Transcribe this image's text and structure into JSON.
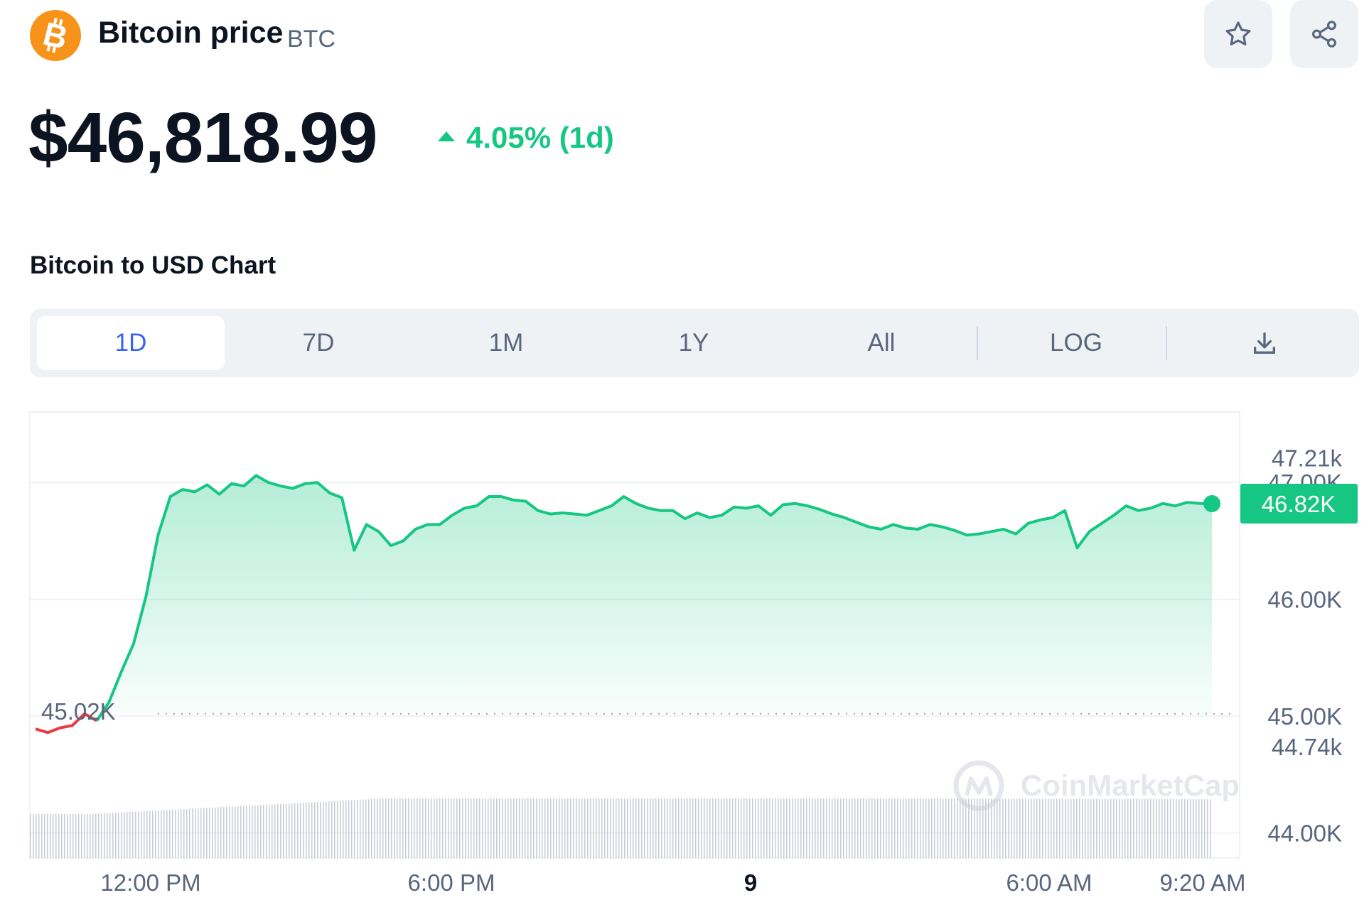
{
  "header": {
    "coin_name": "Bitcoin price",
    "coin_symbol": "BTC",
    "logo_icon": "bitcoin-icon",
    "star_icon": "star-icon",
    "share_icon": "share-icon"
  },
  "price": {
    "value": "$46,818.99",
    "change": "4.05% (1d)",
    "change_direction": "up",
    "change_color": "#16c784"
  },
  "chart_section": {
    "title": "Bitcoin to USD Chart"
  },
  "range_tabs": {
    "items": [
      "1D",
      "7D",
      "1M",
      "1Y",
      "All"
    ],
    "active": "1D",
    "log_label": "LOG",
    "download_icon": "download-icon"
  },
  "colors": {
    "up": "#16c784",
    "down": "#ea3943",
    "brand": "#f7931a"
  },
  "chart_data": {
    "type": "area",
    "watermark": "CoinMarketCap",
    "x_labels": [
      "12:00 PM",
      "6:00 PM",
      "9",
      "6:00 AM",
      "9:20 AM"
    ],
    "y_labels": [
      "47.21k",
      "47.00K",
      "46.00K",
      "45.00K",
      "44.74k",
      "44.00K"
    ],
    "ylim": [
      44000,
      47210
    ],
    "reference_value": 45020,
    "reference_label": "45.02K",
    "current_value": 46818.99,
    "current_label": "46.82K",
    "grid": true,
    "series": [
      {
        "x": [
          0,
          0.25,
          0.5,
          0.75,
          1.0,
          1.25,
          1.5,
          1.75,
          2.0,
          2.25,
          2.5,
          2.75,
          3.0,
          3.25,
          3.5,
          3.75,
          4.0,
          4.25,
          4.5,
          4.75,
          5.0,
          5.25,
          5.5,
          5.75,
          6.0,
          6.25,
          6.5,
          6.75,
          7.0,
          7.25,
          7.5,
          7.75,
          8.0,
          8.25,
          8.5,
          8.75,
          9.0,
          9.25,
          9.5,
          9.75,
          10.0,
          10.25,
          10.5,
          10.75,
          11.0,
          11.25,
          11.5,
          11.75,
          12.0,
          12.25,
          12.5,
          12.75,
          13.0,
          13.25,
          13.5,
          13.75,
          14.0,
          14.25,
          14.5,
          14.75,
          15.0,
          15.25,
          15.5,
          15.75,
          16.0,
          16.25,
          16.5,
          16.75,
          17.0,
          17.25,
          17.5,
          17.75,
          18.0,
          18.25,
          18.5,
          18.75,
          19.0,
          19.25,
          19.5,
          19.75,
          20.0,
          20.25,
          20.5,
          20.75,
          21.0,
          21.25,
          21.5,
          21.75,
          22.0,
          22.25,
          22.5,
          22.75,
          23.0,
          23.25,
          23.5,
          23.75,
          24.0
        ],
        "values": [
          44890,
          44860,
          44900,
          44920,
          45020,
          44960,
          45120,
          45380,
          45620,
          46020,
          46550,
          46880,
          46940,
          46920,
          46980,
          46900,
          46990,
          46970,
          47060,
          47000,
          46970,
          46950,
          46990,
          47000,
          46910,
          46870,
          46420,
          46640,
          46580,
          46460,
          46500,
          46600,
          46640,
          46640,
          46720,
          46780,
          46800,
          46880,
          46880,
          46850,
          46840,
          46760,
          46730,
          46740,
          46730,
          46720,
          46760,
          46800,
          46880,
          46820,
          46780,
          46760,
          46760,
          46690,
          46740,
          46700,
          46720,
          46790,
          46780,
          46800,
          46720,
          46810,
          46820,
          46800,
          46770,
          46730,
          46700,
          46660,
          46620,
          46600,
          46640,
          46610,
          46600,
          46640,
          46620,
          46590,
          46550,
          46560,
          46580,
          46600,
          46560,
          46650,
          46680,
          46700,
          46760,
          46440,
          46580,
          46650,
          46720,
          46800,
          46760,
          46780,
          46820,
          46800,
          46830,
          46820,
          46819
        ]
      }
    ]
  }
}
